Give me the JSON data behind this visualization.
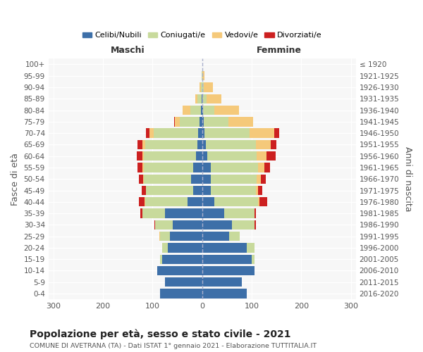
{
  "age_groups": [
    "0-4",
    "5-9",
    "10-14",
    "15-19",
    "20-24",
    "25-29",
    "30-34",
    "35-39",
    "40-44",
    "45-49",
    "50-54",
    "55-59",
    "60-64",
    "65-69",
    "70-74",
    "75-79",
    "80-84",
    "85-89",
    "90-94",
    "95-99",
    "100+"
  ],
  "birth_years": [
    "2016-2020",
    "2011-2015",
    "2006-2010",
    "2001-2005",
    "1996-2000",
    "1991-1995",
    "1986-1990",
    "1981-1985",
    "1976-1980",
    "1971-1975",
    "1966-1970",
    "1961-1965",
    "1956-1960",
    "1951-1955",
    "1946-1950",
    "1941-1945",
    "1936-1940",
    "1931-1935",
    "1926-1930",
    "1921-1925",
    "≤ 1920"
  ],
  "maschi": {
    "celibi": [
      85,
      75,
      90,
      80,
      70,
      65,
      60,
      75,
      30,
      18,
      22,
      18,
      12,
      10,
      8,
      5,
      2,
      1,
      0,
      0,
      0
    ],
    "coniugati": [
      0,
      0,
      0,
      5,
      10,
      20,
      35,
      45,
      85,
      95,
      95,
      100,
      105,
      105,
      90,
      40,
      22,
      8,
      3,
      1,
      0
    ],
    "vedovi": [
      0,
      0,
      0,
      0,
      1,
      1,
      0,
      1,
      1,
      1,
      2,
      2,
      3,
      5,
      8,
      10,
      15,
      5,
      2,
      0,
      0
    ],
    "divorziati": [
      0,
      0,
      0,
      0,
      0,
      1,
      2,
      4,
      12,
      8,
      8,
      10,
      12,
      10,
      8,
      2,
      0,
      0,
      0,
      0,
      0
    ]
  },
  "femmine": {
    "nubili": [
      90,
      80,
      105,
      100,
      90,
      55,
      60,
      45,
      25,
      18,
      18,
      18,
      10,
      8,
      5,
      3,
      2,
      1,
      0,
      0,
      0
    ],
    "coniugate": [
      0,
      0,
      0,
      5,
      15,
      20,
      45,
      60,
      88,
      90,
      92,
      95,
      100,
      100,
      90,
      50,
      22,
      8,
      3,
      0,
      0
    ],
    "vedove": [
      0,
      0,
      0,
      0,
      0,
      1,
      1,
      1,
      3,
      5,
      8,
      12,
      20,
      30,
      50,
      50,
      50,
      30,
      18,
      5,
      1
    ],
    "divorziate": [
      0,
      0,
      0,
      0,
      0,
      0,
      2,
      2,
      15,
      8,
      10,
      12,
      18,
      12,
      10,
      0,
      0,
      0,
      0,
      0,
      0
    ]
  },
  "colors": {
    "celibi_nubili": "#3d6fa8",
    "coniugati": "#c8da9c",
    "vedovi": "#f5c97a",
    "divorziati": "#cc2020"
  },
  "xlim": [
    -310,
    310
  ],
  "xticks": [
    -300,
    -200,
    -100,
    0,
    100,
    200,
    300
  ],
  "xticklabels": [
    "300",
    "200",
    "100",
    "0",
    "100",
    "200",
    "300"
  ],
  "title": "Popolazione per età, sesso e stato civile - 2021",
  "subtitle": "COMUNE DI AVETRANA (TA) - Dati ISTAT 1° gennaio 2021 - Elaborazione TUTTITALIA.IT",
  "ylabel_left": "Fasce di età",
  "ylabel_right": "Anni di nascita",
  "label_maschi": "Maschi",
  "label_femmine": "Femmine",
  "legend_labels": [
    "Celibi/Nubili",
    "Coniugati/e",
    "Vedovi/e",
    "Divorziati/e"
  ],
  "bg_color": "#f7f7f7",
  "grid_color": "#ffffff",
  "dashed_color": "#aab0cc"
}
